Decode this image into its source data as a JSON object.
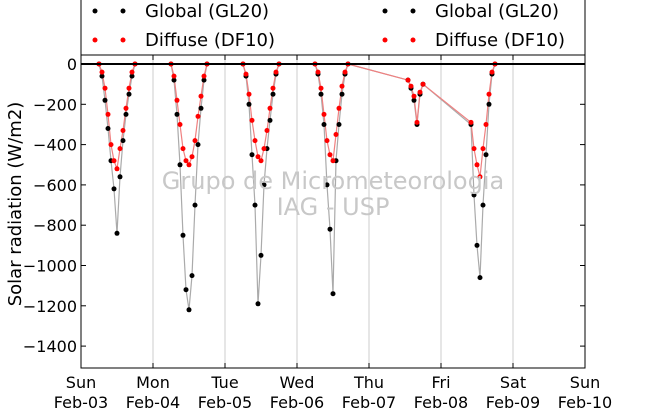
{
  "chart_data": {
    "type": "scatter",
    "title": "",
    "xlabel": "",
    "ylabel": "Solar radiation (W/m2)",
    "ylim": [
      -1500,
      50
    ],
    "yticks": [
      0,
      -200,
      -400,
      -600,
      -800,
      -1000,
      -1200,
      -1400
    ],
    "ytick_labels": [
      "0",
      "−200",
      "−400",
      "−600",
      "−800",
      "−1000",
      "−1200",
      "−1400"
    ],
    "xlim": [
      "2013-02-03",
      "2013-02-10"
    ],
    "x_units": "days",
    "xtick_labels": [
      {
        "day": "Sun",
        "date": "Feb-03"
      },
      {
        "day": "Mon",
        "date": "Feb-04"
      },
      {
        "day": "Tue",
        "date": "Feb-05"
      },
      {
        "day": "Wed",
        "date": "Feb-06"
      },
      {
        "day": "Thu",
        "date": "Feb-07"
      },
      {
        "day": "Fri",
        "date": "Feb-08"
      },
      {
        "day": "Sat",
        "date": "Feb-09"
      },
      {
        "day": "Sun",
        "date": "Feb-10"
      }
    ],
    "grid": "vertical",
    "legend_position": "top (outside plot)",
    "watermark": [
      "Grupo de Micrometeorologia",
      "IAG - USP"
    ],
    "series": [
      {
        "name": "Global (GL20)",
        "marker_color": "#000000",
        "line_color": "#aaaaaa",
        "points": [
          [
            "2013-02-03 06:00",
            0
          ],
          [
            "2013-02-03 07:00",
            -60
          ],
          [
            "2013-02-03 08:00",
            -180
          ],
          [
            "2013-02-03 09:00",
            -320
          ],
          [
            "2013-02-03 10:00",
            -480
          ],
          [
            "2013-02-03 11:00",
            -620
          ],
          [
            "2013-02-03 12:00",
            -840
          ],
          [
            "2013-02-03 13:00",
            -560
          ],
          [
            "2013-02-03 14:00",
            -380
          ],
          [
            "2013-02-03 15:00",
            -250
          ],
          [
            "2013-02-03 16:00",
            -150
          ],
          [
            "2013-02-03 17:00",
            -60
          ],
          [
            "2013-02-03 18:00",
            0
          ],
          [
            "2013-02-04 06:00",
            0
          ],
          [
            "2013-02-04 07:00",
            -80
          ],
          [
            "2013-02-04 08:00",
            -250
          ],
          [
            "2013-02-04 09:00",
            -500
          ],
          [
            "2013-02-04 10:00",
            -850
          ],
          [
            "2013-02-04 11:00",
            -1120
          ],
          [
            "2013-02-04 12:00",
            -1220
          ],
          [
            "2013-02-04 13:00",
            -1050
          ],
          [
            "2013-02-04 14:00",
            -700
          ],
          [
            "2013-02-04 15:00",
            -400
          ],
          [
            "2013-02-04 16:00",
            -220
          ],
          [
            "2013-02-04 17:00",
            -80
          ],
          [
            "2013-02-04 18:00",
            0
          ],
          [
            "2013-02-05 06:00",
            0
          ],
          [
            "2013-02-05 07:00",
            -60
          ],
          [
            "2013-02-05 08:00",
            -200
          ],
          [
            "2013-02-05 09:00",
            -450
          ],
          [
            "2013-02-05 10:00",
            -700
          ],
          [
            "2013-02-05 11:00",
            -1190
          ],
          [
            "2013-02-05 12:00",
            -950
          ],
          [
            "2013-02-05 13:00",
            -600
          ],
          [
            "2013-02-05 14:00",
            -420
          ],
          [
            "2013-02-05 15:00",
            -280
          ],
          [
            "2013-02-05 16:00",
            -150
          ],
          [
            "2013-02-05 17:00",
            -50
          ],
          [
            "2013-02-05 18:00",
            0
          ],
          [
            "2013-02-06 06:00",
            0
          ],
          [
            "2013-02-06 07:00",
            -50
          ],
          [
            "2013-02-06 08:00",
            -150
          ],
          [
            "2013-02-06 09:00",
            -300
          ],
          [
            "2013-02-06 10:00",
            -600
          ],
          [
            "2013-02-06 11:00",
            -820
          ],
          [
            "2013-02-06 12:00",
            -1140
          ],
          [
            "2013-02-06 13:00",
            -480
          ],
          [
            "2013-02-06 14:00",
            -300
          ],
          [
            "2013-02-06 15:00",
            -150
          ],
          [
            "2013-02-06 16:00",
            -50
          ],
          [
            "2013-02-06 17:00",
            0
          ],
          [
            "2013-02-07 13:00",
            -80
          ],
          [
            "2013-02-07 14:00",
            -120
          ],
          [
            "2013-02-07 15:00",
            -180
          ],
          [
            "2013-02-07 16:00",
            -300
          ],
          [
            "2013-02-07 17:00",
            -150
          ],
          [
            "2013-02-07 18:00",
            -100
          ],
          [
            "2013-02-08 10:00",
            -300
          ],
          [
            "2013-02-08 11:00",
            -650
          ],
          [
            "2013-02-08 12:00",
            -900
          ],
          [
            "2013-02-08 13:00",
            -1060
          ],
          [
            "2013-02-08 14:00",
            -700
          ],
          [
            "2013-02-08 15:00",
            -450
          ],
          [
            "2013-02-08 16:00",
            -200
          ],
          [
            "2013-02-08 17:00",
            -50
          ],
          [
            "2013-02-08 18:00",
            0
          ]
        ]
      },
      {
        "name": "Diffuse (DF10)",
        "marker_color": "#ff0000",
        "line_color": "#f08080",
        "points": [
          [
            "2013-02-03 06:00",
            0
          ],
          [
            "2013-02-03 07:00",
            -40
          ],
          [
            "2013-02-03 08:00",
            -120
          ],
          [
            "2013-02-03 09:00",
            -250
          ],
          [
            "2013-02-03 10:00",
            -400
          ],
          [
            "2013-02-03 11:00",
            -480
          ],
          [
            "2013-02-03 12:00",
            -520
          ],
          [
            "2013-02-03 13:00",
            -420
          ],
          [
            "2013-02-03 14:00",
            -330
          ],
          [
            "2013-02-03 15:00",
            -220
          ],
          [
            "2013-02-03 16:00",
            -120
          ],
          [
            "2013-02-03 17:00",
            -40
          ],
          [
            "2013-02-03 18:00",
            0
          ],
          [
            "2013-02-04 06:00",
            0
          ],
          [
            "2013-02-04 07:00",
            -60
          ],
          [
            "2013-02-04 08:00",
            -180
          ],
          [
            "2013-02-04 09:00",
            -300
          ],
          [
            "2013-02-04 10:00",
            -420
          ],
          [
            "2013-02-04 11:00",
            -480
          ],
          [
            "2013-02-04 12:00",
            -500
          ],
          [
            "2013-02-04 13:00",
            -460
          ],
          [
            "2013-02-04 14:00",
            -380
          ],
          [
            "2013-02-04 15:00",
            -260
          ],
          [
            "2013-02-04 16:00",
            -160
          ],
          [
            "2013-02-04 17:00",
            -60
          ],
          [
            "2013-02-04 18:00",
            0
          ],
          [
            "2013-02-05 06:00",
            0
          ],
          [
            "2013-02-05 07:00",
            -50
          ],
          [
            "2013-02-05 08:00",
            -150
          ],
          [
            "2013-02-05 09:00",
            -280
          ],
          [
            "2013-02-05 10:00",
            -380
          ],
          [
            "2013-02-05 11:00",
            -460
          ],
          [
            "2013-02-05 12:00",
            -480
          ],
          [
            "2013-02-05 13:00",
            -420
          ],
          [
            "2013-02-05 14:00",
            -330
          ],
          [
            "2013-02-05 15:00",
            -220
          ],
          [
            "2013-02-05 16:00",
            -120
          ],
          [
            "2013-02-05 17:00",
            -40
          ],
          [
            "2013-02-05 18:00",
            0
          ],
          [
            "2013-02-06 06:00",
            0
          ],
          [
            "2013-02-06 07:00",
            -40
          ],
          [
            "2013-02-06 08:00",
            -120
          ],
          [
            "2013-02-06 09:00",
            -250
          ],
          [
            "2013-02-06 10:00",
            -380
          ],
          [
            "2013-02-06 11:00",
            -450
          ],
          [
            "2013-02-06 12:00",
            -480
          ],
          [
            "2013-02-06 13:00",
            -350
          ],
          [
            "2013-02-06 14:00",
            -220
          ],
          [
            "2013-02-06 15:00",
            -110
          ],
          [
            "2013-02-06 16:00",
            -40
          ],
          [
            "2013-02-06 17:00",
            0
          ],
          [
            "2013-02-07 13:00",
            -80
          ],
          [
            "2013-02-07 14:00",
            -110
          ],
          [
            "2013-02-07 15:00",
            -160
          ],
          [
            "2013-02-07 16:00",
            -290
          ],
          [
            "2013-02-07 17:00",
            -140
          ],
          [
            "2013-02-07 18:00",
            -100
          ],
          [
            "2013-02-08 10:00",
            -290
          ],
          [
            "2013-02-08 11:00",
            -420
          ],
          [
            "2013-02-08 12:00",
            -500
          ],
          [
            "2013-02-08 13:00",
            -560
          ],
          [
            "2013-02-08 14:00",
            -420
          ],
          [
            "2013-02-08 15:00",
            -300
          ],
          [
            "2013-02-08 16:00",
            -150
          ],
          [
            "2013-02-08 17:00",
            -40
          ],
          [
            "2013-02-08 18:00",
            0
          ]
        ]
      }
    ]
  }
}
